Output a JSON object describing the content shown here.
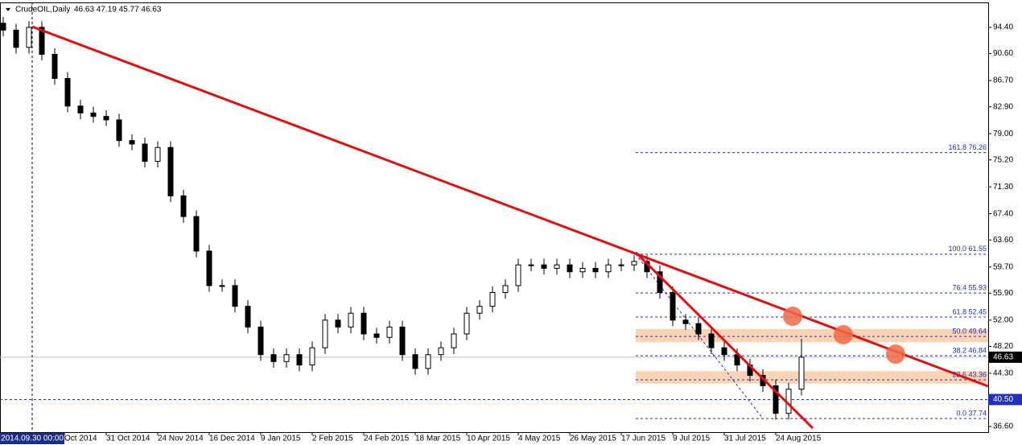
{
  "chart_data": {
    "type": "candlestick",
    "title": "CrudeOIL,Daily",
    "ohlc_text": "46.63 47.19 45.77 46.63",
    "x": [
      0,
      4,
      8,
      12,
      16,
      20,
      24,
      28,
      32,
      36,
      40,
      44,
      48,
      52,
      56,
      60,
      64,
      68,
      72,
      76,
      80,
      84,
      88,
      92,
      96,
      100,
      104,
      108,
      112,
      116,
      120,
      124,
      128,
      132,
      136,
      140,
      144,
      148,
      152,
      156,
      160,
      164,
      168,
      172,
      176,
      180,
      184,
      188,
      192,
      196,
      200,
      204,
      208,
      212,
      216,
      220,
      224,
      228,
      232,
      236,
      240,
      244,
      248
    ],
    "open": [
      95,
      94,
      91.5,
      94.4,
      90.5,
      87,
      83,
      82,
      81.5,
      81,
      78,
      77.5,
      75,
      77,
      70,
      67,
      62,
      57,
      57,
      54,
      51,
      47,
      46,
      47,
      45.5,
      48,
      52,
      51,
      53,
      50,
      49.5,
      51,
      47,
      45,
      47,
      48,
      50,
      53,
      54,
      56,
      57,
      60,
      60,
      59.5,
      60,
      59,
      59.5,
      59,
      60,
      60,
      60.5,
      59,
      56,
      52,
      51.5,
      50,
      48,
      47,
      45.5,
      44,
      42.5,
      38.5,
      42
    ],
    "high": [
      95.9,
      94.9,
      95.3,
      95.3,
      91.4,
      87.9,
      83.9,
      82.9,
      82.4,
      81.9,
      78.9,
      78.4,
      77.9,
      77.9,
      70.9,
      67.9,
      62.9,
      57.9,
      57.9,
      54.9,
      51.9,
      47.9,
      47.9,
      47.9,
      48.9,
      52.9,
      52.9,
      53.9,
      53.9,
      50.9,
      51.9,
      51.9,
      47.9,
      47.9,
      48.9,
      50.9,
      53.9,
      54.9,
      56.9,
      57.9,
      60.9,
      60.9,
      60.9,
      60.9,
      60.9,
      60.4,
      60.4,
      60.9,
      60.9,
      61.4,
      61.4,
      59.9,
      56.9,
      52.9,
      52.4,
      50.9,
      48.9,
      47.9,
      46.4,
      44.9,
      43.4,
      42.9,
      49.3
    ],
    "low": [
      93.1,
      90.6,
      90.6,
      89.6,
      86.1,
      82.1,
      81.1,
      80.6,
      80.1,
      77.1,
      76.6,
      74.1,
      74.1,
      69.1,
      66.1,
      61.1,
      56.1,
      56.1,
      53.1,
      50.1,
      46.1,
      45.1,
      45.1,
      44.6,
      44.6,
      47.1,
      50.1,
      50.1,
      49.1,
      48.6,
      48.6,
      46.1,
      44.1,
      44.1,
      46.1,
      47.1,
      49.1,
      52.1,
      53.1,
      55.1,
      56.1,
      59.1,
      58.6,
      58.6,
      58.1,
      58.1,
      58.1,
      58.1,
      59.1,
      59.1,
      58.1,
      55.1,
      51.1,
      50.6,
      49.1,
      47.1,
      46.1,
      44.6,
      43.1,
      41.6,
      37.6,
      37.6,
      41.1
    ],
    "close": [
      94,
      91.5,
      94.4,
      90.5,
      87,
      83,
      82,
      81.5,
      81,
      78,
      77.5,
      75,
      77,
      70,
      67,
      62,
      57,
      57,
      54,
      51,
      47,
      46,
      47,
      45.5,
      48,
      52,
      51,
      53,
      50,
      49.5,
      51,
      47,
      45,
      47,
      48,
      50,
      53,
      54,
      56,
      57,
      60,
      60,
      59.5,
      60,
      59,
      59.5,
      59,
      60,
      60,
      60.5,
      59,
      56,
      52,
      51.5,
      50,
      48,
      47,
      45.5,
      44,
      42.5,
      38.5,
      42,
      46.63
    ],
    "xlim": [
      -1,
      306
    ],
    "ylim": [
      35.78,
      98.01
    ],
    "yticks": [
      {
        "value": 94.4,
        "label": "94.40"
      },
      {
        "value": 90.6,
        "label": "90.60"
      },
      {
        "value": 86.7,
        "label": "86.70"
      },
      {
        "value": 82.9,
        "label": "82.90"
      },
      {
        "value": 79,
        "label": "79.00"
      },
      {
        "value": 75.2,
        "label": "75.20"
      },
      {
        "value": 71.3,
        "label": "71.30"
      },
      {
        "value": 67.4,
        "label": "67.40"
      },
      {
        "value": 63.6,
        "label": "63.60"
      },
      {
        "value": 59.7,
        "label": "59.70"
      },
      {
        "value": 55.9,
        "label": "55.90"
      },
      {
        "value": 52,
        "label": "52.00"
      },
      {
        "value": 48.2,
        "label": "48.20"
      },
      {
        "value": 44.3,
        "label": "44.30"
      },
      {
        "value": 36.6,
        "label": "36.60"
      }
    ],
    "xticks": [
      {
        "value": 19,
        "label": "Oct 2014"
      },
      {
        "value": 32,
        "label": "31 Oct 2014"
      },
      {
        "value": 48,
        "label": "24 Nov 2014"
      },
      {
        "value": 64,
        "label": "16 Dec 2014"
      },
      {
        "value": 80,
        "label": "9 Jan 2015"
      },
      {
        "value": 96,
        "label": "2 Feb 2015"
      },
      {
        "value": 112,
        "label": "24 Feb 2015"
      },
      {
        "value": 128,
        "label": "18 Mar 2015"
      },
      {
        "value": 144,
        "label": "10 Apr 2015"
      },
      {
        "value": 160,
        "label": "4 May 2015"
      },
      {
        "value": 176,
        "label": "26 May 2015"
      },
      {
        "value": 192,
        "label": "17 Jun 2015"
      },
      {
        "value": 208,
        "label": "9 Jul 2015"
      },
      {
        "value": 224,
        "label": "31 Jul 2015"
      },
      {
        "value": 240,
        "label": "24 Aug 2015"
      }
    ],
    "crosshair": {
      "value": 9,
      "label": "2014.09.30 00:00"
    },
    "last_price": 46.63,
    "level_line": {
      "value": 40.5,
      "label": "40.50"
    },
    "trendlines": [
      {
        "x": [
          9,
          306
        ],
        "y": [
          94.5,
          42.42
        ],
        "color": "#e01010"
      },
      {
        "x": [
          196.5,
          251.5
        ],
        "y": [
          61.8,
          36.36
        ],
        "color": "#e01010"
      }
    ],
    "fib_start": 196.5,
    "fib_levels": [
      {
        "value": 76.26,
        "label": "161.8 76.26"
      },
      {
        "value": 61.55,
        "label": "100.0 61.55"
      },
      {
        "value": 55.93,
        "label": "76.4 55.93"
      },
      {
        "value": 52.45,
        "label": "61.8 52.45"
      },
      {
        "value": 49.64,
        "label": "50.0 49.64"
      },
      {
        "value": 46.84,
        "label": "38.2 46.84"
      },
      {
        "value": 43.36,
        "label": "23.6 43.36"
      },
      {
        "value": 37.74,
        "label": "0.0 37.74"
      }
    ],
    "zones": [
      [
        48.8,
        50.7
      ],
      [
        42.8,
        44.6
      ]
    ],
    "circles": {
      "x": [
        245.25,
        261,
        277.25
      ],
      "y": [
        52.56,
        49.88,
        47.08
      ],
      "color": "#ef6a45"
    }
  }
}
